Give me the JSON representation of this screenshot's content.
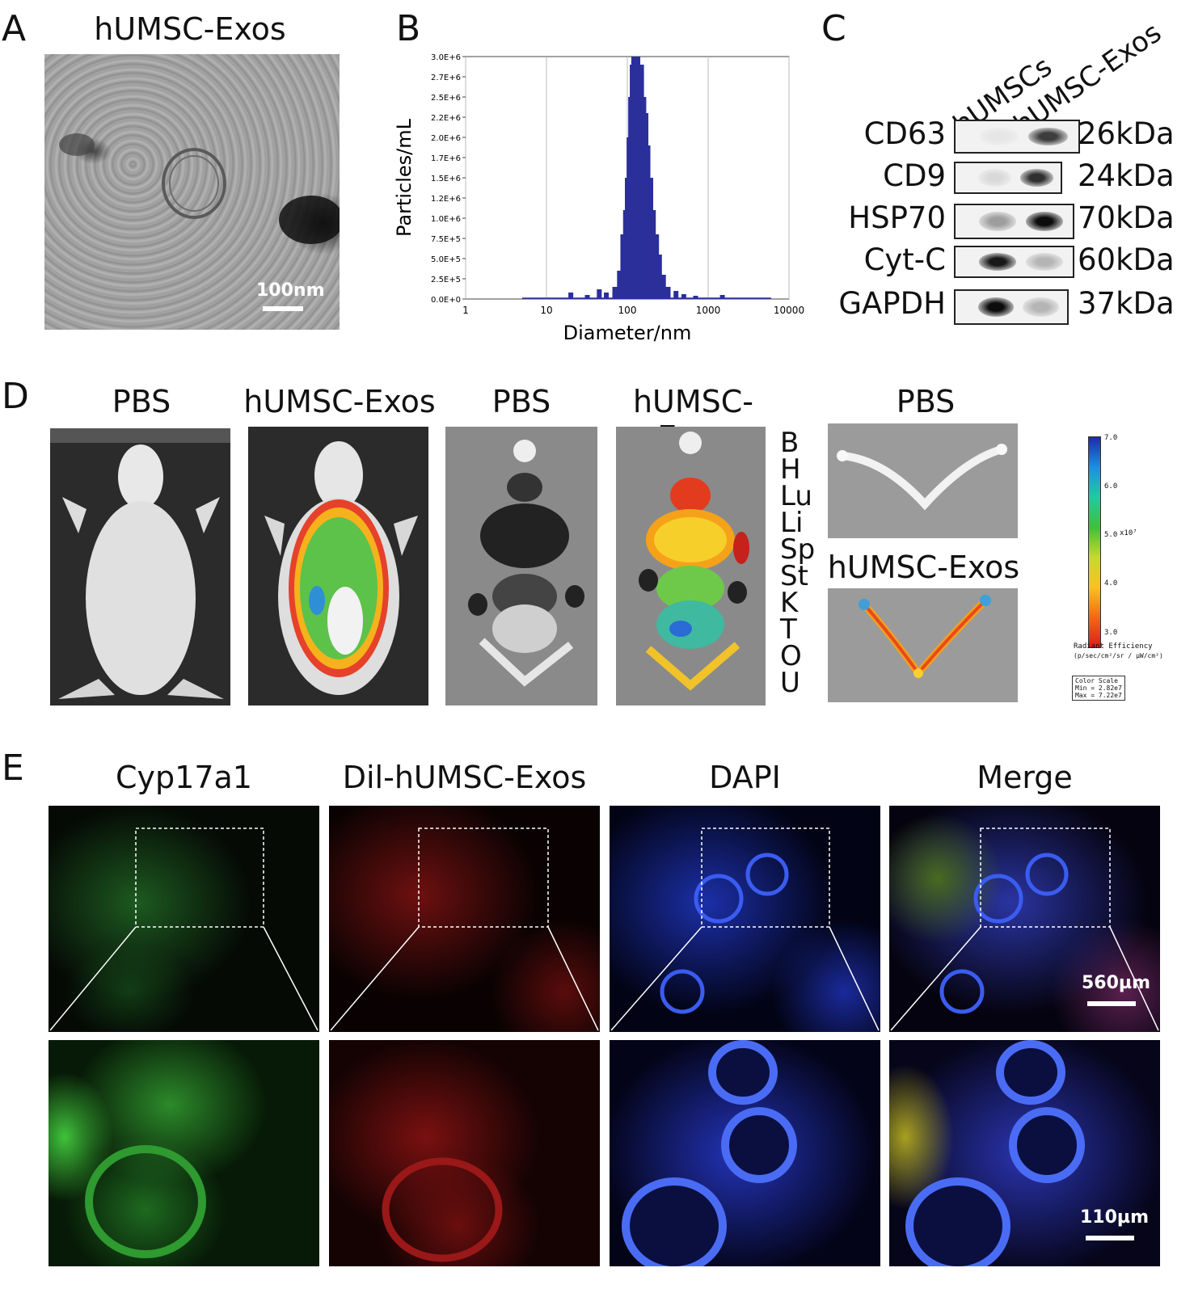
{
  "panels": {
    "a": {
      "letter": "A",
      "title": "hUMSC-Exos",
      "scale": "100nm"
    },
    "b": {
      "letter": "B"
    },
    "c": {
      "letter": "C",
      "lanes": [
        "hUMSCs",
        "hUMSC-Exos"
      ],
      "proteins": [
        {
          "name": "CD63",
          "kda": "26kDa"
        },
        {
          "name": "CD9",
          "kda": "24kDa"
        },
        {
          "name": "HSP70",
          "kda": "70kDa"
        },
        {
          "name": "Cyt-C",
          "kda": "60kDa"
        },
        {
          "name": "GAPDH",
          "kda": "37kDa"
        }
      ]
    },
    "d": {
      "letter": "D",
      "titles": [
        "PBS",
        "hUMSC-Exos",
        "PBS",
        "hUMSC-Exos",
        "PBS",
        "hUMSC-Exos"
      ],
      "organs": [
        "B",
        "H",
        "Lu",
        "Li",
        "Sp",
        "St",
        "K",
        "T",
        "O",
        "U"
      ],
      "colorbar": {
        "ticks": [
          "7.0",
          "6.0",
          "5.0",
          "4.0",
          "3.0"
        ],
        "unit": "x10⁷",
        "label": "Radiant Efficiency",
        "units": "(p/sec/cm²/sr / μW/cm²)",
        "scale_box": [
          "Color Scale",
          "Min = 2.82e7",
          "Max = 7.22e7"
        ]
      }
    },
    "e": {
      "letter": "E",
      "titles": [
        "Cyp17a1",
        "Dil-hUMSC-Exos",
        "DAPI",
        "Merge"
      ],
      "scale_top": "560µm",
      "scale_bottom": "110µm"
    }
  },
  "chart_data": {
    "type": "bar",
    "xlabel": "Diameter/nm",
    "ylabel": "Particles/mL",
    "xscale": "log",
    "xlim": [
      1,
      10000
    ],
    "ylim": [
      0,
      3000000
    ],
    "xticks": [
      "1",
      "10",
      "100",
      "1000",
      "10000"
    ],
    "yticks": [
      "0.0E+0",
      "2.5E+5",
      "5.0E+5",
      "7.5E+5",
      "1.0E+6",
      "1.2E+6",
      "1.5E+6",
      "1.7E+6",
      "2.0E+6",
      "2.2E+6",
      "2.5E+6",
      "2.7E+6",
      "3.0E+6"
    ],
    "grid": true,
    "points": [
      {
        "x": 20,
        "y": 80000
      },
      {
        "x": 32,
        "y": 50000
      },
      {
        "x": 45,
        "y": 120000
      },
      {
        "x": 55,
        "y": 80000
      },
      {
        "x": 70,
        "y": 150000
      },
      {
        "x": 80,
        "y": 350000
      },
      {
        "x": 88,
        "y": 800000
      },
      {
        "x": 95,
        "y": 1100000
      },
      {
        "x": 100,
        "y": 1500000
      },
      {
        "x": 105,
        "y": 2000000
      },
      {
        "x": 110,
        "y": 2500000
      },
      {
        "x": 115,
        "y": 2900000
      },
      {
        "x": 120,
        "y": 3000000
      },
      {
        "x": 128,
        "y": 2950000
      },
      {
        "x": 135,
        "y": 3000000
      },
      {
        "x": 142,
        "y": 2800000
      },
      {
        "x": 150,
        "y": 2900000
      },
      {
        "x": 160,
        "y": 2500000
      },
      {
        "x": 170,
        "y": 2300000
      },
      {
        "x": 180,
        "y": 1900000
      },
      {
        "x": 195,
        "y": 1500000
      },
      {
        "x": 210,
        "y": 1100000
      },
      {
        "x": 230,
        "y": 800000
      },
      {
        "x": 250,
        "y": 550000
      },
      {
        "x": 280,
        "y": 300000
      },
      {
        "x": 320,
        "y": 150000
      },
      {
        "x": 400,
        "y": 100000
      },
      {
        "x": 500,
        "y": 60000
      },
      {
        "x": 700,
        "y": 40000
      },
      {
        "x": 1500,
        "y": 50000
      }
    ]
  }
}
